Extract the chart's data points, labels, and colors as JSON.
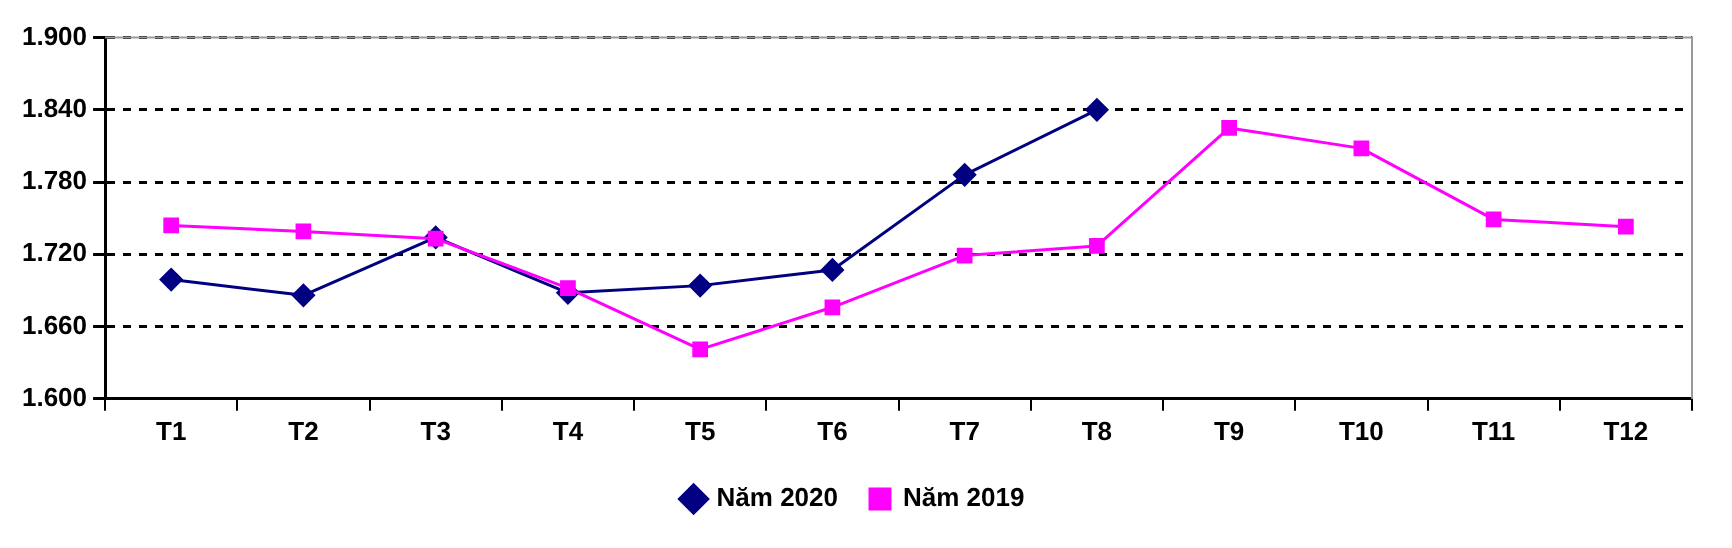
{
  "chart_data": {
    "type": "line",
    "categories": [
      "T1",
      "T2",
      "T3",
      "T4",
      "T5",
      "T6",
      "T7",
      "T8",
      "T9",
      "T10",
      "T11",
      "T12"
    ],
    "series": [
      {
        "name": "Năm 2020",
        "color": "#000080",
        "marker": "diamond",
        "values": [
          1699,
          1686,
          1734,
          1688,
          1694,
          1707,
          1786,
          1840,
          null,
          null,
          null,
          null
        ]
      },
      {
        "name": "Năm 2019",
        "color": "#ff00ff",
        "marker": "square",
        "values": [
          1744,
          1739,
          1733,
          1692,
          1641,
          1676,
          1719,
          1727,
          1825,
          1808,
          1749,
          1743
        ]
      }
    ],
    "ylim": [
      1600,
      1900
    ],
    "yticks": [
      {
        "value": 1600,
        "label": "1.600"
      },
      {
        "value": 1660,
        "label": "1.660"
      },
      {
        "value": 1720,
        "label": "1.720"
      },
      {
        "value": 1780,
        "label": "1.780"
      },
      {
        "value": 1840,
        "label": "1.840"
      },
      {
        "value": 1900,
        "label": "1.900"
      }
    ],
    "grid": "y",
    "legend": "bottom",
    "line_style": "solid"
  }
}
